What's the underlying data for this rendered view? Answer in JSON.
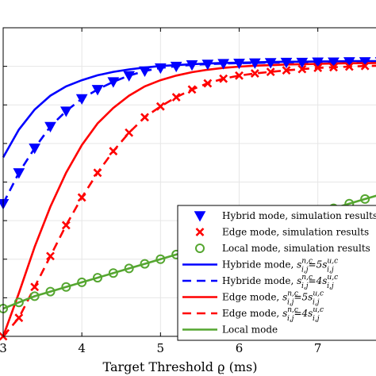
{
  "chart_data": {
    "type": "line",
    "title": "",
    "xlabel": "Target Threshold ϱ (ms)",
    "ylabel": "",
    "xlim": [
      3,
      7.8
    ],
    "ylim": [
      0,
      1
    ],
    "xticks": [
      3,
      4,
      5,
      6,
      7
    ],
    "xtick_labels": [
      "3",
      "4",
      "5",
      "6",
      "7"
    ],
    "yticks": [
      0,
      0.125,
      0.25,
      0.375,
      0.5,
      0.625,
      0.75,
      0.875,
      1
    ],
    "grid": true,
    "legend_position": "bottom-right",
    "colors": {
      "blue": "#0000ff",
      "red": "#ff0000",
      "green": "#55a630"
    },
    "series": [
      {
        "label_text": "Hybrid mode, simulation results",
        "kind": "marker",
        "marker": "triangle-down",
        "filled": true,
        "color": "#0000ff",
        "x": [
          3.0,
          3.2,
          3.4,
          3.6,
          3.8,
          4.0,
          4.2,
          4.4,
          4.6,
          4.8,
          5.0,
          5.2,
          5.4,
          5.6,
          5.8,
          6.0,
          6.2,
          6.4,
          6.6,
          6.8,
          7.0,
          7.2,
          7.4,
          7.6,
          7.8
        ],
        "y": [
          0.43,
          0.53,
          0.61,
          0.68,
          0.73,
          0.77,
          0.8,
          0.825,
          0.845,
          0.86,
          0.87,
          0.875,
          0.88,
          0.882,
          0.884,
          0.885,
          0.886,
          0.887,
          0.888,
          0.888,
          0.889,
          0.889,
          0.89,
          0.89,
          0.89
        ]
      },
      {
        "label_text": "Edge mode, simulation results",
        "kind": "marker",
        "marker": "x",
        "filled": false,
        "color": "#ff0000",
        "x": [
          3.0,
          3.2,
          3.4,
          3.6,
          3.8,
          4.0,
          4.2,
          4.4,
          4.6,
          4.8,
          5.0,
          5.2,
          5.4,
          5.6,
          5.8,
          6.0,
          6.2,
          6.4,
          6.6,
          6.8,
          7.0,
          7.2,
          7.4,
          7.6,
          7.8
        ],
        "y": [
          0.0,
          0.06,
          0.16,
          0.26,
          0.36,
          0.45,
          0.53,
          0.6,
          0.66,
          0.71,
          0.745,
          0.775,
          0.8,
          0.82,
          0.835,
          0.845,
          0.852,
          0.857,
          0.862,
          0.866,
          0.87,
          0.872,
          0.874,
          0.876,
          0.877
        ]
      },
      {
        "label_text": "Local mode, simulation results",
        "kind": "marker",
        "marker": "circle",
        "filled": false,
        "color": "#55a630",
        "x": [
          3.0,
          3.2,
          3.4,
          3.6,
          3.8,
          4.0,
          4.2,
          4.4,
          4.6,
          4.8,
          5.0,
          5.2,
          5.4,
          5.6,
          5.8,
          6.0,
          6.2,
          6.4,
          6.6,
          6.8,
          7.0,
          7.2,
          7.4,
          7.6,
          7.8
        ],
        "y": [
          0.09,
          0.11,
          0.13,
          0.145,
          0.16,
          0.175,
          0.19,
          0.205,
          0.22,
          0.235,
          0.25,
          0.265,
          0.28,
          0.295,
          0.31,
          0.325,
          0.34,
          0.355,
          0.37,
          0.385,
          0.4,
          0.415,
          0.43,
          0.445,
          0.46
        ]
      },
      {
        "label_text": "Hybride mode, ",
        "formula": {
          "base": "s",
          "sup": "n,c",
          "sub": "i,j",
          "rel": "=5",
          "sup2": "u,c",
          "sub2": "i,j"
        },
        "kind": "line",
        "dash": "solid",
        "color": "#0000ff",
        "x": [
          3.0,
          3.2,
          3.4,
          3.6,
          3.8,
          4.0,
          4.2,
          4.4,
          4.6,
          4.8,
          5.0,
          5.2,
          5.4,
          5.6,
          5.8,
          6.0,
          6.2,
          6.4,
          6.6,
          6.8,
          7.0,
          7.2,
          7.4,
          7.6,
          7.8
        ],
        "y": [
          0.58,
          0.67,
          0.735,
          0.78,
          0.81,
          0.83,
          0.846,
          0.857,
          0.865,
          0.871,
          0.876,
          0.879,
          0.882,
          0.884,
          0.886,
          0.887,
          0.888,
          0.889,
          0.89,
          0.89,
          0.891,
          0.891,
          0.892,
          0.892,
          0.892
        ]
      },
      {
        "label_text": "Hybride mode, ",
        "formula": {
          "base": "s",
          "sup": "n,c",
          "sub": "i,j",
          "rel": "=4",
          "sup2": "u,c",
          "sub2": "i,j"
        },
        "kind": "line",
        "dash": "dashed",
        "color": "#0000ff",
        "x": [
          3.0,
          3.2,
          3.4,
          3.6,
          3.8,
          4.0,
          4.2,
          4.4,
          4.6,
          4.8,
          5.0,
          5.2,
          5.4,
          5.6,
          5.8,
          6.0,
          6.2,
          6.4,
          6.6,
          6.8,
          7.0,
          7.2,
          7.4,
          7.6,
          7.8
        ],
        "y": [
          0.43,
          0.53,
          0.61,
          0.68,
          0.73,
          0.77,
          0.8,
          0.825,
          0.845,
          0.86,
          0.87,
          0.875,
          0.88,
          0.882,
          0.884,
          0.885,
          0.886,
          0.887,
          0.888,
          0.888,
          0.889,
          0.889,
          0.89,
          0.89,
          0.89
        ]
      },
      {
        "label_text": "Edge mode, ",
        "formula": {
          "base": "s",
          "sup": "n,c",
          "sub": "i,j",
          "rel": "=5",
          "sup2": "u,c",
          "sub2": "i,j"
        },
        "kind": "line",
        "dash": "solid",
        "color": "#ff0000",
        "x": [
          3.0,
          3.2,
          3.4,
          3.6,
          3.8,
          4.0,
          4.2,
          4.4,
          4.6,
          4.8,
          5.0,
          5.2,
          5.4,
          5.6,
          5.8,
          6.0,
          6.2,
          6.4,
          6.6,
          6.8,
          7.0,
          7.2,
          7.4,
          7.6,
          7.8
        ],
        "y": [
          0.0,
          0.14,
          0.29,
          0.42,
          0.53,
          0.62,
          0.69,
          0.74,
          0.78,
          0.81,
          0.83,
          0.845,
          0.856,
          0.864,
          0.87,
          0.874,
          0.877,
          0.879,
          0.881,
          0.882,
          0.883,
          0.884,
          0.885,
          0.885,
          0.886
        ]
      },
      {
        "label_text": "Edge mode, ",
        "formula": {
          "base": "s",
          "sup": "n,c",
          "sub": "i,j",
          "rel": "=4",
          "sup2": "u,c",
          "sub2": "i,j"
        },
        "kind": "line",
        "dash": "dashed",
        "color": "#ff0000",
        "x": [
          3.0,
          3.2,
          3.4,
          3.6,
          3.8,
          4.0,
          4.2,
          4.4,
          4.6,
          4.8,
          5.0,
          5.2,
          5.4,
          5.6,
          5.8,
          6.0,
          6.2,
          6.4,
          6.6,
          6.8,
          7.0,
          7.2,
          7.4,
          7.6,
          7.8
        ],
        "y": [
          0.0,
          0.06,
          0.16,
          0.26,
          0.36,
          0.45,
          0.53,
          0.6,
          0.66,
          0.71,
          0.745,
          0.775,
          0.8,
          0.82,
          0.835,
          0.845,
          0.852,
          0.857,
          0.862,
          0.866,
          0.87,
          0.872,
          0.874,
          0.876,
          0.877
        ]
      },
      {
        "label_text": "Local mode",
        "kind": "line",
        "dash": "solid",
        "color": "#55a630",
        "x": [
          3.0,
          3.2,
          3.4,
          3.6,
          3.8,
          4.0,
          4.2,
          4.4,
          4.6,
          4.8,
          5.0,
          5.2,
          5.4,
          5.6,
          5.8,
          6.0,
          6.2,
          6.4,
          6.6,
          6.8,
          7.0,
          7.2,
          7.4,
          7.6,
          7.8
        ],
        "y": [
          0.09,
          0.11,
          0.13,
          0.145,
          0.16,
          0.175,
          0.19,
          0.205,
          0.22,
          0.235,
          0.25,
          0.265,
          0.28,
          0.295,
          0.31,
          0.325,
          0.34,
          0.355,
          0.37,
          0.385,
          0.4,
          0.415,
          0.43,
          0.445,
          0.46
        ]
      }
    ]
  }
}
